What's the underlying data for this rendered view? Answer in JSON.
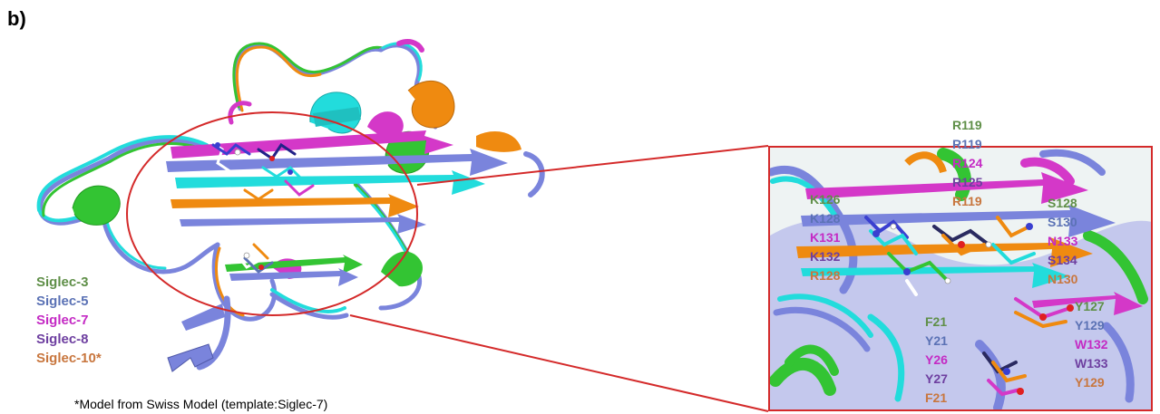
{
  "panel_label": "b)",
  "footnote": "*Model from Swiss Model (template:Siglec-7)",
  "colors": {
    "siglec3": "#5f8f48",
    "siglec5": "#5b72b5",
    "siglec7": "#c42ac4",
    "siglec8": "#6e3fa0",
    "siglec10": "#c8763e",
    "highlight": "#d42a2a",
    "cartoon_green": "#33c433",
    "cartoon_cyan": "#22dcdc",
    "cartoon_magenta": "#d438c8",
    "cartoon_orange": "#ef8a10",
    "cartoon_slate": "#7a84dc"
  },
  "legend": [
    {
      "label": "Siglec-3",
      "color_key": "siglec3"
    },
    {
      "label": "Siglec-5",
      "color_key": "siglec5"
    },
    {
      "label": "Siglec-7",
      "color_key": "siglec7"
    },
    {
      "label": "Siglec-8",
      "color_key": "siglec8"
    },
    {
      "label": "Siglec-10*",
      "color_key": "siglec10"
    }
  ],
  "residue_groups": {
    "arg_top": [
      "R119",
      "R119",
      "R124",
      "R125",
      "R119"
    ],
    "lys_left": [
      "K126",
      "K128",
      "K131",
      "K132",
      "R128"
    ],
    "ser_right": [
      "S128",
      "S130",
      "N133",
      "S134",
      "N130"
    ],
    "tyr_right": [
      "Y127",
      "Y129",
      "W132",
      "W133",
      "Y129"
    ],
    "phe_bottom": [
      "F21",
      "Y21",
      "Y26",
      "Y27",
      "F21"
    ]
  }
}
